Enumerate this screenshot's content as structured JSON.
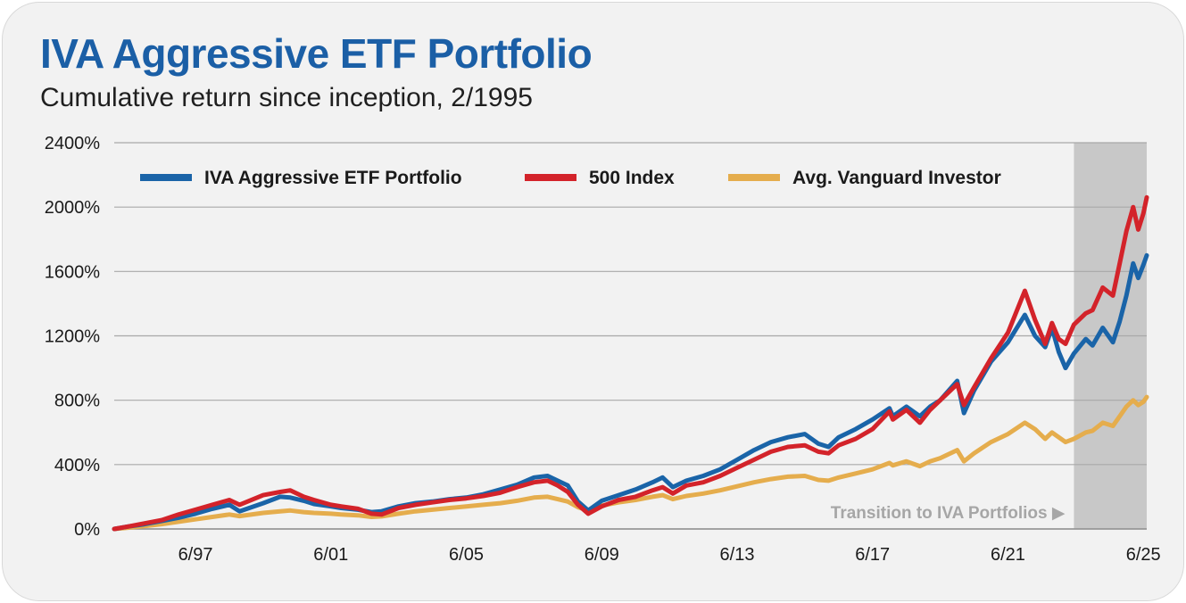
{
  "title": "IVA Aggressive ETF Portfolio",
  "subtitle": "Cumulative return since inception, 2/1995",
  "chart_data": {
    "type": "line",
    "title": "IVA Aggressive ETF Portfolio",
    "subtitle": "Cumulative return since inception, 2/1995",
    "xlabel": "",
    "ylabel": "",
    "ylim": [
      0,
      2400
    ],
    "xlim": [
      1995.1,
      2025.6
    ],
    "y_ticks": [
      0,
      400,
      800,
      1200,
      1600,
      2000,
      2400
    ],
    "y_tick_labels": [
      "0%",
      "400%",
      "800%",
      "1200%",
      "1600%",
      "2000%",
      "2400%"
    ],
    "x_ticks": [
      1997.5,
      2001.5,
      2005.5,
      2009.5,
      2013.5,
      2017.5,
      2021.5,
      2025.5
    ],
    "x_tick_labels": [
      "6/97",
      "6/01",
      "6/05",
      "6/09",
      "6/13",
      "6/17",
      "6/21",
      "6/25"
    ],
    "grid": true,
    "legend_position": "top",
    "shaded_region": {
      "x_start": 2023.45,
      "x_end": 2025.6,
      "color": "#c8c8c8"
    },
    "annotation": {
      "text": "Transition to IVA Portfolios ▶"
    },
    "series": [
      {
        "name": "IVA Aggressive ETF Portfolio",
        "color": "#1a64a8",
        "points": [
          [
            1995.1,
            0
          ],
          [
            1995.5,
            15
          ],
          [
            1996.0,
            30
          ],
          [
            1996.5,
            50
          ],
          [
            1997.0,
            70
          ],
          [
            1997.5,
            95
          ],
          [
            1998.0,
            125
          ],
          [
            1998.5,
            150
          ],
          [
            1998.8,
            110
          ],
          [
            1999.5,
            160
          ],
          [
            2000.0,
            200
          ],
          [
            2000.3,
            195
          ],
          [
            2000.7,
            175
          ],
          [
            2001.0,
            155
          ],
          [
            2001.5,
            140
          ],
          [
            2001.8,
            130
          ],
          [
            2002.3,
            120
          ],
          [
            2002.7,
            105
          ],
          [
            2003.0,
            110
          ],
          [
            2003.5,
            140
          ],
          [
            2004.0,
            160
          ],
          [
            2004.5,
            170
          ],
          [
            2005.0,
            185
          ],
          [
            2005.5,
            195
          ],
          [
            2006.0,
            215
          ],
          [
            2006.5,
            245
          ],
          [
            2007.0,
            275
          ],
          [
            2007.5,
            320
          ],
          [
            2007.9,
            330
          ],
          [
            2008.2,
            300
          ],
          [
            2008.5,
            270
          ],
          [
            2008.8,
            170
          ],
          [
            2009.1,
            115
          ],
          [
            2009.5,
            175
          ],
          [
            2010.0,
            210
          ],
          [
            2010.5,
            245
          ],
          [
            2011.0,
            290
          ],
          [
            2011.3,
            320
          ],
          [
            2011.6,
            260
          ],
          [
            2012.0,
            300
          ],
          [
            2012.5,
            330
          ],
          [
            2013.0,
            370
          ],
          [
            2013.5,
            430
          ],
          [
            2014.0,
            490
          ],
          [
            2014.5,
            540
          ],
          [
            2015.0,
            570
          ],
          [
            2015.5,
            590
          ],
          [
            2015.9,
            530
          ],
          [
            2016.2,
            510
          ],
          [
            2016.5,
            570
          ],
          [
            2017.0,
            620
          ],
          [
            2017.5,
            680
          ],
          [
            2018.0,
            750
          ],
          [
            2018.1,
            700
          ],
          [
            2018.5,
            760
          ],
          [
            2018.9,
            700
          ],
          [
            2019.2,
            760
          ],
          [
            2019.5,
            800
          ],
          [
            2020.0,
            920
          ],
          [
            2020.2,
            720
          ],
          [
            2020.5,
            860
          ],
          [
            2021.0,
            1040
          ],
          [
            2021.5,
            1160
          ],
          [
            2022.0,
            1330
          ],
          [
            2022.3,
            1200
          ],
          [
            2022.6,
            1130
          ],
          [
            2022.8,
            1250
          ],
          [
            2023.0,
            1100
          ],
          [
            2023.2,
            1000
          ],
          [
            2023.45,
            1090
          ],
          [
            2023.8,
            1180
          ],
          [
            2024.0,
            1140
          ],
          [
            2024.3,
            1250
          ],
          [
            2024.6,
            1160
          ],
          [
            2024.8,
            1290
          ],
          [
            2025.0,
            1450
          ],
          [
            2025.2,
            1650
          ],
          [
            2025.35,
            1560
          ],
          [
            2025.5,
            1640
          ],
          [
            2025.6,
            1700
          ]
        ]
      },
      {
        "name": "500 Index",
        "color": "#d3232a",
        "points": [
          [
            1995.1,
            0
          ],
          [
            1995.5,
            15
          ],
          [
            1996.0,
            35
          ],
          [
            1996.5,
            55
          ],
          [
            1997.0,
            90
          ],
          [
            1997.5,
            120
          ],
          [
            1998.0,
            150
          ],
          [
            1998.5,
            180
          ],
          [
            1998.8,
            150
          ],
          [
            1999.5,
            210
          ],
          [
            2000.0,
            230
          ],
          [
            2000.3,
            240
          ],
          [
            2000.7,
            200
          ],
          [
            2001.0,
            180
          ],
          [
            2001.5,
            150
          ],
          [
            2001.8,
            140
          ],
          [
            2002.3,
            125
          ],
          [
            2002.7,
            95
          ],
          [
            2003.0,
            90
          ],
          [
            2003.5,
            130
          ],
          [
            2004.0,
            150
          ],
          [
            2004.5,
            165
          ],
          [
            2005.0,
            180
          ],
          [
            2005.5,
            190
          ],
          [
            2006.0,
            205
          ],
          [
            2006.5,
            225
          ],
          [
            2007.0,
            260
          ],
          [
            2007.5,
            290
          ],
          [
            2007.9,
            300
          ],
          [
            2008.2,
            270
          ],
          [
            2008.5,
            230
          ],
          [
            2008.8,
            150
          ],
          [
            2009.1,
            95
          ],
          [
            2009.5,
            140
          ],
          [
            2010.0,
            180
          ],
          [
            2010.5,
            200
          ],
          [
            2011.0,
            240
          ],
          [
            2011.3,
            260
          ],
          [
            2011.6,
            220
          ],
          [
            2012.0,
            270
          ],
          [
            2012.5,
            290
          ],
          [
            2013.0,
            330
          ],
          [
            2013.5,
            380
          ],
          [
            2014.0,
            430
          ],
          [
            2014.5,
            480
          ],
          [
            2015.0,
            510
          ],
          [
            2015.5,
            520
          ],
          [
            2015.9,
            480
          ],
          [
            2016.2,
            470
          ],
          [
            2016.5,
            520
          ],
          [
            2017.0,
            560
          ],
          [
            2017.5,
            620
          ],
          [
            2018.0,
            730
          ],
          [
            2018.1,
            680
          ],
          [
            2018.5,
            740
          ],
          [
            2018.9,
            660
          ],
          [
            2019.2,
            740
          ],
          [
            2019.5,
            800
          ],
          [
            2020.0,
            900
          ],
          [
            2020.2,
            770
          ],
          [
            2020.5,
            880
          ],
          [
            2021.0,
            1060
          ],
          [
            2021.5,
            1220
          ],
          [
            2022.0,
            1480
          ],
          [
            2022.3,
            1300
          ],
          [
            2022.6,
            1150
          ],
          [
            2022.8,
            1280
          ],
          [
            2023.0,
            1180
          ],
          [
            2023.2,
            1150
          ],
          [
            2023.45,
            1270
          ],
          [
            2023.8,
            1340
          ],
          [
            2024.0,
            1360
          ],
          [
            2024.3,
            1500
          ],
          [
            2024.6,
            1450
          ],
          [
            2024.8,
            1650
          ],
          [
            2025.0,
            1850
          ],
          [
            2025.2,
            2000
          ],
          [
            2025.35,
            1860
          ],
          [
            2025.5,
            1960
          ],
          [
            2025.6,
            2060
          ]
        ]
      },
      {
        "name": "Avg. Vanguard Investor",
        "color": "#e5ad4d",
        "points": [
          [
            1995.1,
            0
          ],
          [
            1995.5,
            8
          ],
          [
            1996.0,
            18
          ],
          [
            1996.5,
            30
          ],
          [
            1997.0,
            45
          ],
          [
            1997.5,
            60
          ],
          [
            1998.0,
            75
          ],
          [
            1998.5,
            90
          ],
          [
            1998.8,
            80
          ],
          [
            1999.5,
            100
          ],
          [
            2000.0,
            110
          ],
          [
            2000.3,
            115
          ],
          [
            2000.7,
            105
          ],
          [
            2001.0,
            100
          ],
          [
            2001.5,
            95
          ],
          [
            2001.8,
            90
          ],
          [
            2002.3,
            85
          ],
          [
            2002.7,
            75
          ],
          [
            2003.0,
            78
          ],
          [
            2003.5,
            95
          ],
          [
            2004.0,
            110
          ],
          [
            2004.5,
            120
          ],
          [
            2005.0,
            130
          ],
          [
            2005.5,
            140
          ],
          [
            2006.0,
            150
          ],
          [
            2006.5,
            160
          ],
          [
            2007.0,
            175
          ],
          [
            2007.5,
            195
          ],
          [
            2007.9,
            200
          ],
          [
            2008.2,
            185
          ],
          [
            2008.5,
            170
          ],
          [
            2008.8,
            135
          ],
          [
            2009.1,
            115
          ],
          [
            2009.5,
            145
          ],
          [
            2010.0,
            165
          ],
          [
            2010.5,
            180
          ],
          [
            2011.0,
            200
          ],
          [
            2011.3,
            210
          ],
          [
            2011.6,
            185
          ],
          [
            2012.0,
            205
          ],
          [
            2012.5,
            220
          ],
          [
            2013.0,
            240
          ],
          [
            2013.5,
            265
          ],
          [
            2014.0,
            290
          ],
          [
            2014.5,
            310
          ],
          [
            2015.0,
            325
          ],
          [
            2015.5,
            330
          ],
          [
            2015.9,
            305
          ],
          [
            2016.2,
            300
          ],
          [
            2016.5,
            320
          ],
          [
            2017.0,
            345
          ],
          [
            2017.5,
            370
          ],
          [
            2018.0,
            410
          ],
          [
            2018.1,
            395
          ],
          [
            2018.5,
            420
          ],
          [
            2018.9,
            390
          ],
          [
            2019.2,
            420
          ],
          [
            2019.5,
            440
          ],
          [
            2020.0,
            490
          ],
          [
            2020.2,
            420
          ],
          [
            2020.5,
            470
          ],
          [
            2021.0,
            540
          ],
          [
            2021.5,
            590
          ],
          [
            2022.0,
            660
          ],
          [
            2022.3,
            620
          ],
          [
            2022.6,
            560
          ],
          [
            2022.8,
            600
          ],
          [
            2023.0,
            570
          ],
          [
            2023.2,
            540
          ],
          [
            2023.45,
            560
          ],
          [
            2023.8,
            600
          ],
          [
            2024.0,
            610
          ],
          [
            2024.3,
            660
          ],
          [
            2024.6,
            640
          ],
          [
            2024.8,
            700
          ],
          [
            2025.0,
            760
          ],
          [
            2025.2,
            800
          ],
          [
            2025.35,
            770
          ],
          [
            2025.5,
            790
          ],
          [
            2025.6,
            820
          ]
        ]
      }
    ]
  }
}
